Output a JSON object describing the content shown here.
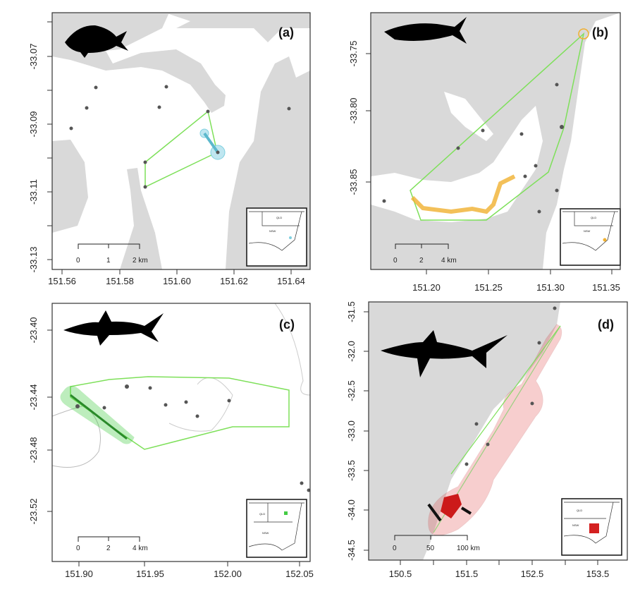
{
  "panels": [
    {
      "label": "(a)",
      "species_icon": "fish-silhouette-icon",
      "y_ticks": [
        "-33.07",
        "-33.09",
        "-33.11",
        "-33.13"
      ],
      "x_ticks": [
        "151.56",
        "151.58",
        "151.60",
        "151.62",
        "151.64"
      ],
      "scale_bar": [
        "0",
        "1",
        "2 km"
      ],
      "accent": "#7fd0e0"
    },
    {
      "label": "(b)",
      "species_icon": "fish-silhouette-icon",
      "y_ticks": [
        "-33.75",
        "-33.80",
        "-33.85"
      ],
      "x_ticks": [
        "151.20",
        "151.25",
        "151.30",
        "151.35"
      ],
      "scale_bar": [
        "0",
        "2",
        "4 km"
      ],
      "accent": "#f0b030"
    },
    {
      "label": "(c)",
      "species_icon": "shark-silhouette-icon",
      "y_ticks": [
        "-23.40",
        "-23.44",
        "-23.48",
        "-23.52"
      ],
      "x_ticks": [
        "151.90",
        "151.95",
        "152.00",
        "152.05"
      ],
      "scale_bar": [
        "0",
        "2",
        "4 km"
      ],
      "accent": "#44cc44"
    },
    {
      "label": "(d)",
      "species_icon": "shark-silhouette-icon",
      "y_ticks": [
        "-31.5",
        "-32.0",
        "-32.5",
        "-33.0",
        "-33.5",
        "-34.0",
        "-34.5"
      ],
      "x_ticks": [
        "150.5",
        "151.5",
        "152.5",
        "153.5"
      ],
      "scale_bar": [
        "0",
        "50",
        "100 km"
      ],
      "accent": "#d42020"
    }
  ],
  "inset": {
    "qld": "QLD",
    "nsw": "NSW"
  },
  "colors": {
    "land": "#d9d9d9",
    "hull": "#7ee05a"
  }
}
